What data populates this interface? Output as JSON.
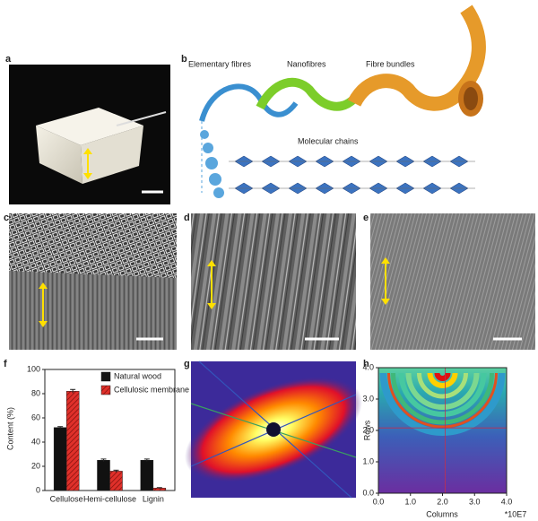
{
  "panel_labels": [
    "a",
    "b",
    "c",
    "d",
    "e",
    "f",
    "g",
    "h"
  ],
  "schematic": {
    "labels": [
      "Elementary fibres",
      "Nanofibres",
      "Fibre bundles",
      "Molecular chains"
    ]
  },
  "chart_data": [
    {
      "type": "bar",
      "ylabel": "Content (%)",
      "categories": [
        "Cellulose",
        "Hemi-cellulose",
        "Lignin"
      ],
      "series": [
        {
          "name": "Natural wood",
          "color": "#111111",
          "values": [
            52,
            25,
            25
          ],
          "errors": [
            0.8,
            1,
            1
          ]
        },
        {
          "name": "Cellulosic membrane",
          "color": "#e0302a",
          "hatch": "diagonal",
          "values": [
            82,
            16,
            2
          ],
          "errors": [
            1.5,
            0.8,
            0.4
          ]
        }
      ],
      "ylim": [
        0,
        100
      ],
      "yticks": [
        0,
        20,
        40,
        60,
        80,
        100
      ],
      "legend": "upper right"
    },
    {
      "type": "heatmap",
      "xlabel": "Columns",
      "ylabel": "Rows",
      "annotation": "*10E7",
      "xlim": [
        0,
        4
      ],
      "ylim": [
        0,
        4
      ],
      "xticks": [
        {
          "value": 0,
          "label": "0.0"
        },
        {
          "value": 1,
          "label": "1.0"
        },
        {
          "value": 2,
          "label": "2.0"
        },
        {
          "value": 3,
          "label": "3.0"
        },
        {
          "value": 4,
          "label": "4.0"
        }
      ],
      "yticks": [
        {
          "value": 0,
          "label": "0.0"
        },
        {
          "value": 1,
          "label": "1.0"
        },
        {
          "value": 2,
          "label": "2.0"
        },
        {
          "value": 3,
          "label": "3.0"
        },
        {
          "value": 4,
          "label": "4.0"
        }
      ]
    }
  ]
}
